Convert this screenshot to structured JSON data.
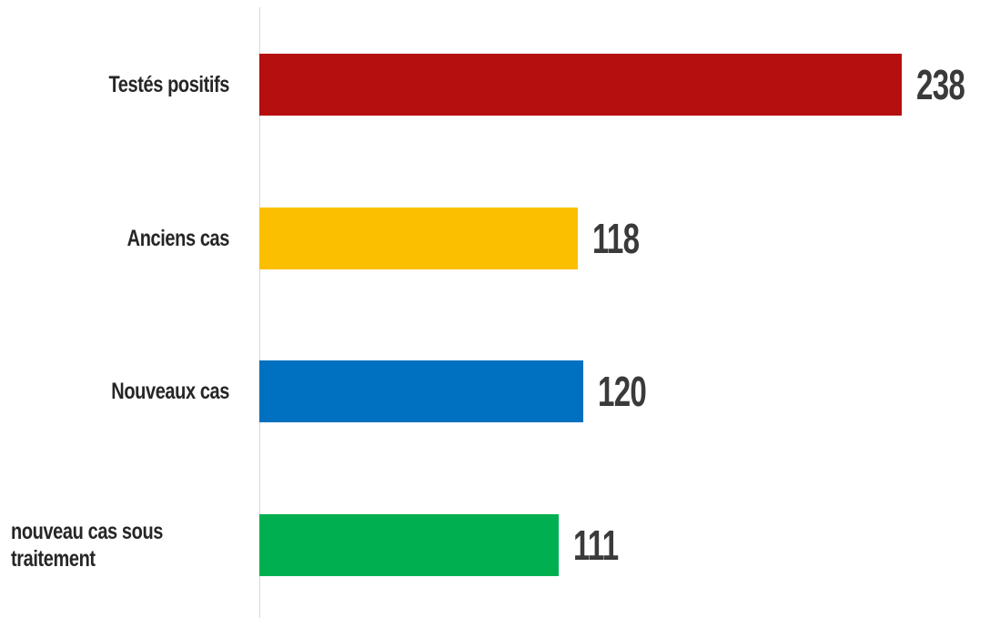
{
  "chart_data": {
    "type": "hbar",
    "categories": [
      "Testés positifs",
      "Anciens cas",
      "Nouveaux cas",
      "nouveau cas sous traitement"
    ],
    "values": [
      238,
      118,
      120,
      111
    ],
    "colors": [
      "#b50f0f",
      "#fcbf00",
      "#0070c0",
      "#00b050"
    ]
  }
}
